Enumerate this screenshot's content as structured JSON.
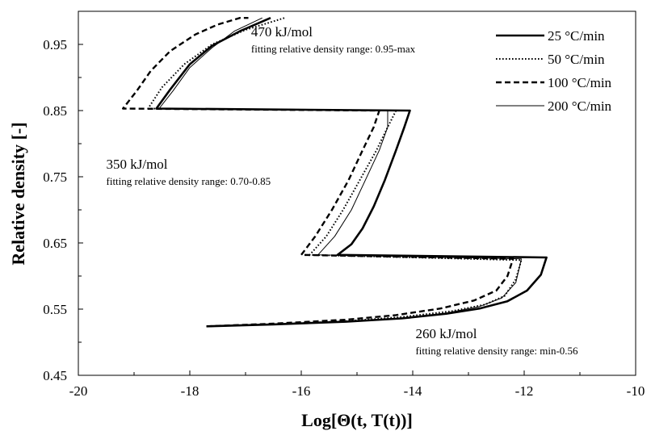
{
  "chart_data": {
    "type": "line",
    "title": "",
    "xlabel": "Log[Θ(t, T(t))]",
    "ylabel": "Relative density [-]",
    "xlim": [
      -20,
      -10
    ],
    "ylim": [
      0.45,
      1.0
    ],
    "x_ticks": [
      -20,
      -18,
      -16,
      -14,
      -12,
      -10
    ],
    "y_ticks": [
      0.45,
      0.55,
      0.65,
      0.75,
      0.85,
      0.95
    ],
    "grid": false,
    "legend_position": "top-right",
    "series": [
      {
        "name": "25 °C/min",
        "style": "solid-thick",
        "points": [
          [
            -17.7,
            0.524
          ],
          [
            -16.5,
            0.527
          ],
          [
            -15.2,
            0.531
          ],
          [
            -14.2,
            0.536
          ],
          [
            -13.4,
            0.543
          ],
          [
            -12.8,
            0.551
          ],
          [
            -12.3,
            0.562
          ],
          [
            -11.95,
            0.578
          ],
          [
            -11.7,
            0.602
          ],
          [
            -11.6,
            0.628
          ],
          [
            -15.35,
            0.632
          ],
          [
            -15.1,
            0.648
          ],
          [
            -14.9,
            0.672
          ],
          [
            -14.7,
            0.705
          ],
          [
            -14.5,
            0.745
          ],
          [
            -14.3,
            0.79
          ],
          [
            -14.15,
            0.825
          ],
          [
            -14.05,
            0.85
          ],
          [
            -18.6,
            0.853
          ],
          [
            -18.35,
            0.882
          ],
          [
            -18.0,
            0.92
          ],
          [
            -17.6,
            0.948
          ],
          [
            -17.1,
            0.97
          ],
          [
            -16.55,
            0.99
          ]
        ]
      },
      {
        "name": "50 °C/min",
        "style": "dotted",
        "points": [
          [
            -17.7,
            0.524
          ],
          [
            -16.5,
            0.527
          ],
          [
            -15.2,
            0.532
          ],
          [
            -14.2,
            0.538
          ],
          [
            -13.3,
            0.547
          ],
          [
            -12.7,
            0.557
          ],
          [
            -12.35,
            0.57
          ],
          [
            -12.15,
            0.595
          ],
          [
            -12.05,
            0.624
          ],
          [
            -15.85,
            0.632
          ],
          [
            -15.55,
            0.66
          ],
          [
            -15.25,
            0.7
          ],
          [
            -14.95,
            0.745
          ],
          [
            -14.65,
            0.79
          ],
          [
            -14.45,
            0.825
          ],
          [
            -14.3,
            0.85
          ],
          [
            -18.75,
            0.853
          ],
          [
            -18.5,
            0.885
          ],
          [
            -18.1,
            0.92
          ],
          [
            -17.6,
            0.95
          ],
          [
            -17.0,
            0.972
          ],
          [
            -16.3,
            0.99
          ]
        ]
      },
      {
        "name": "100 °C/min",
        "style": "dashed",
        "points": [
          [
            -17.7,
            0.524
          ],
          [
            -16.5,
            0.528
          ],
          [
            -15.2,
            0.534
          ],
          [
            -14.3,
            0.541
          ],
          [
            -13.5,
            0.551
          ],
          [
            -12.9,
            0.563
          ],
          [
            -12.5,
            0.578
          ],
          [
            -12.3,
            0.6
          ],
          [
            -12.2,
            0.626
          ],
          [
            -16.0,
            0.632
          ],
          [
            -15.75,
            0.66
          ],
          [
            -15.45,
            0.7
          ],
          [
            -15.15,
            0.745
          ],
          [
            -14.9,
            0.79
          ],
          [
            -14.7,
            0.825
          ],
          [
            -14.6,
            0.85
          ],
          [
            -19.2,
            0.853
          ],
          [
            -18.95,
            0.88
          ],
          [
            -18.7,
            0.91
          ],
          [
            -18.35,
            0.94
          ],
          [
            -17.9,
            0.965
          ],
          [
            -17.5,
            0.98
          ],
          [
            -17.1,
            0.99
          ],
          [
            -16.95,
            0.99
          ]
        ]
      },
      {
        "name": "200 °C/min",
        "style": "solid-thin",
        "points": [
          [
            -17.7,
            0.524
          ],
          [
            -16.5,
            0.527
          ],
          [
            -15.2,
            0.531
          ],
          [
            -14.2,
            0.536
          ],
          [
            -13.4,
            0.544
          ],
          [
            -12.8,
            0.554
          ],
          [
            -12.4,
            0.567
          ],
          [
            -12.15,
            0.59
          ],
          [
            -12.05,
            0.626
          ],
          [
            -15.7,
            0.632
          ],
          [
            -15.4,
            0.66
          ],
          [
            -15.1,
            0.7
          ],
          [
            -14.85,
            0.745
          ],
          [
            -14.6,
            0.79
          ],
          [
            -14.45,
            0.825
          ],
          [
            -14.45,
            0.85
          ],
          [
            -18.55,
            0.853
          ],
          [
            -18.3,
            0.88
          ],
          [
            -18.0,
            0.915
          ],
          [
            -17.6,
            0.945
          ],
          [
            -17.2,
            0.97
          ],
          [
            -16.7,
            0.99
          ]
        ]
      }
    ],
    "annotations": [
      {
        "text": "470 kJ/mol",
        "x": -16.9,
        "y": 0.962,
        "size": "large"
      },
      {
        "text": "fitting relative density range: 0.95-max",
        "x": -16.9,
        "y": 0.938,
        "size": "small"
      },
      {
        "text": "350 kJ/mol",
        "x": -19.5,
        "y": 0.762,
        "size": "large"
      },
      {
        "text": "fitting relative density range: 0.70-0.85",
        "x": -19.5,
        "y": 0.738,
        "size": "small"
      },
      {
        "text": "260 kJ/mol",
        "x": -13.95,
        "y": 0.506,
        "size": "large"
      },
      {
        "text": "fitting relative density range: min-0.56",
        "x": -13.95,
        "y": 0.482,
        "size": "small"
      }
    ]
  }
}
